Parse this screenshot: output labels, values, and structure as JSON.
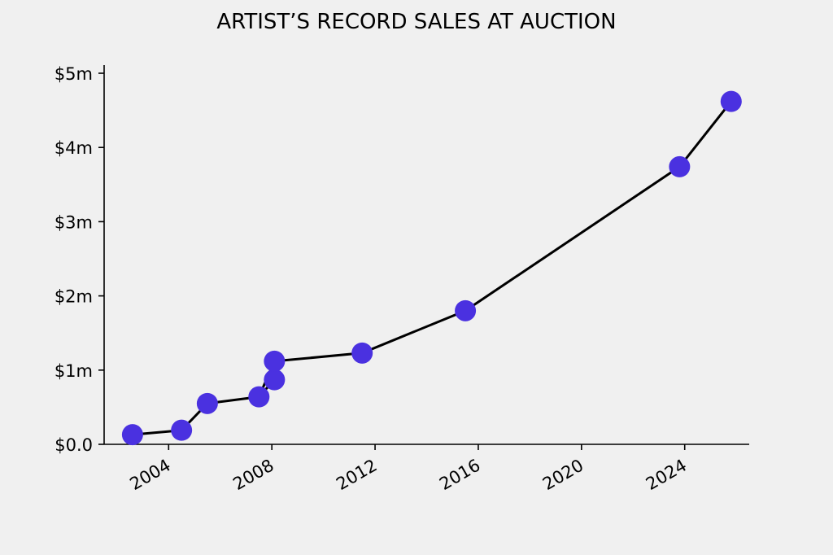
{
  "chart_data": {
    "type": "line",
    "title": "ARTIST’S RECORD SALES AT AUCTION",
    "xlabel": "",
    "ylabel": "",
    "x_ticks": [
      "2004",
      "2008",
      "2012",
      "2016",
      "2020",
      "2024"
    ],
    "y_ticks": [
      "$0.0",
      "$1m",
      "$2m",
      "$3m",
      "$4m",
      "$5m"
    ],
    "xlim": [
      2001.5,
      2026.5
    ],
    "ylim": [
      0,
      5
    ],
    "grid": false,
    "series": [
      {
        "color": "#4a31e0",
        "line_color": "#000000",
        "points": [
          {
            "x": 2002.6,
            "y": 0.13
          },
          {
            "x": 2004.5,
            "y": 0.19
          },
          {
            "x": 2005.5,
            "y": 0.55
          },
          {
            "x": 2007.5,
            "y": 0.64
          },
          {
            "x": 2008.1,
            "y": 0.87
          },
          {
            "x": 2008.1,
            "y": 1.12
          },
          {
            "x": 2011.5,
            "y": 1.23
          },
          {
            "x": 2015.5,
            "y": 1.8
          },
          {
            "x": 2023.8,
            "y": 3.74
          },
          {
            "x": 2025.8,
            "y": 4.62
          }
        ]
      }
    ]
  }
}
